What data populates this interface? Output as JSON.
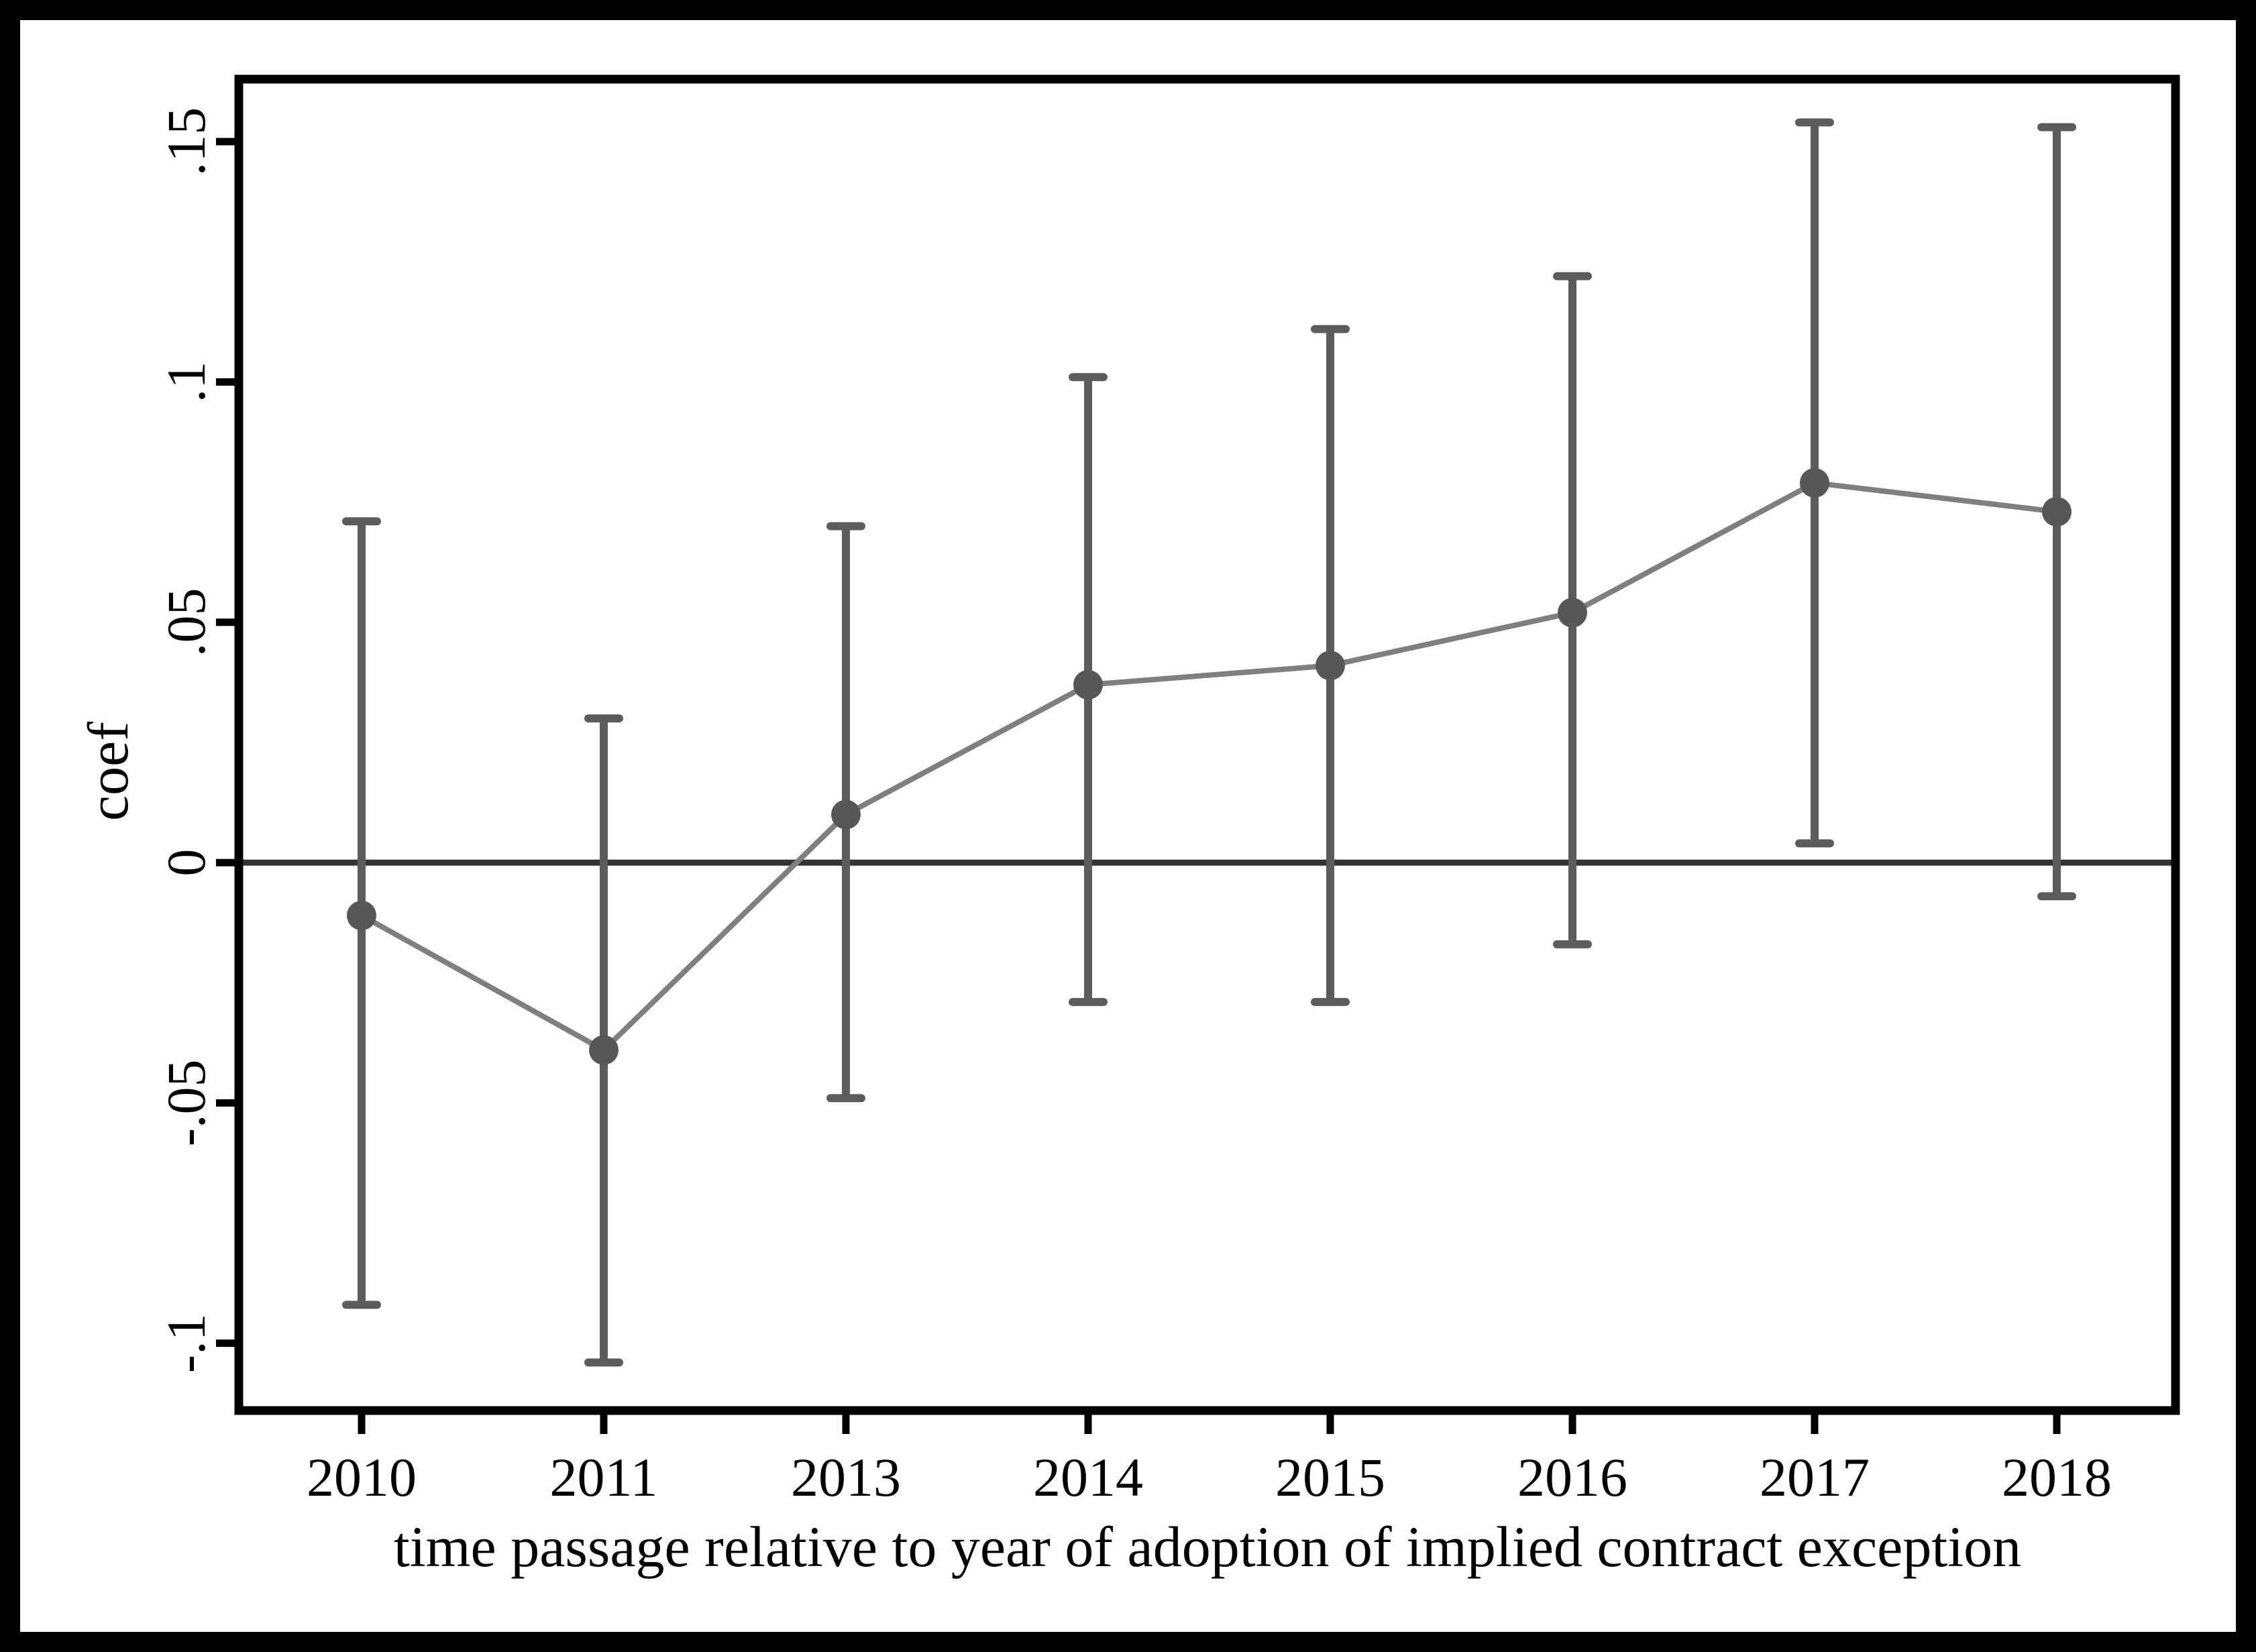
{
  "figure": {
    "border_color": "#000000",
    "background": "#ffffff"
  },
  "chart_data": {
    "type": "line",
    "subtype": "coefficient-plot-with-error-bars",
    "title": "",
    "xlabel": "time passage relative to year of adoption of implied contract exception",
    "ylabel": "coef",
    "categories": [
      "2010",
      "2011",
      "2013",
      "2014",
      "2015",
      "2016",
      "2017",
      "2018"
    ],
    "series": [
      {
        "name": "coef",
        "values": [
          -0.011,
          -0.039,
          0.01,
          0.037,
          0.041,
          0.052,
          0.079,
          0.073
        ],
        "ci_low": [
          -0.092,
          -0.104,
          -0.049,
          -0.029,
          -0.029,
          -0.017,
          0.004,
          -0.007
        ],
        "ci_high": [
          0.071,
          0.03,
          0.07,
          0.101,
          0.111,
          0.122,
          0.154,
          0.153
        ]
      }
    ],
    "yticks": [
      {
        "label": ".15",
        "value": 0.15
      },
      {
        "label": ".1",
        "value": 0.1
      },
      {
        "label": ".05",
        "value": 0.05
      },
      {
        "label": "0",
        "value": 0
      },
      {
        "label": "-.05",
        "value": -0.05
      },
      {
        "label": "-.1",
        "value": -0.1
      }
    ],
    "ylim": [
      -0.114,
      0.163
    ],
    "ref_line_y": 0,
    "grid": false,
    "legend": false,
    "marker_style": "circle",
    "colors": {
      "marker": "#575757",
      "error_bar": "#5c5c5c",
      "line": "#7f7f7f",
      "zero_line": "#333333",
      "frame": "#000000",
      "text": "#000000"
    }
  }
}
